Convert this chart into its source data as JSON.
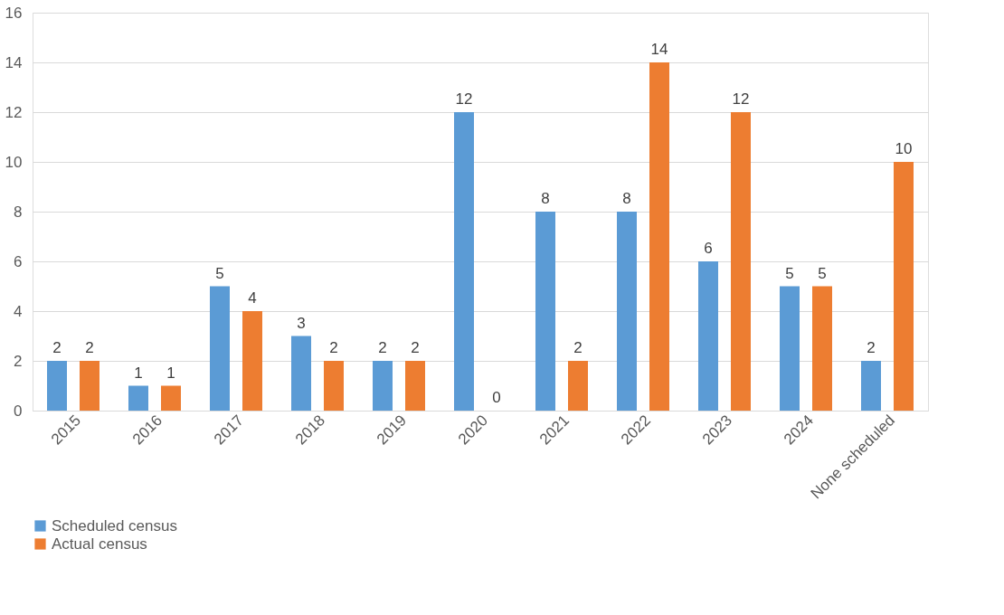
{
  "chart_data": {
    "type": "bar",
    "categories": [
      "2015",
      "2016",
      "2017",
      "2018",
      "2019",
      "2020",
      "2021",
      "2022",
      "2023",
      "2024",
      "None scheduled"
    ],
    "series": [
      {
        "name": "Scheduled census",
        "color": "#5b9bd5",
        "values": [
          2,
          1,
          5,
          3,
          2,
          12,
          8,
          8,
          6,
          5,
          2
        ]
      },
      {
        "name": "Actual census",
        "color": "#ed7d31",
        "values": [
          2,
          1,
          4,
          2,
          2,
          0,
          2,
          14,
          12,
          5,
          10
        ]
      }
    ],
    "ylim": [
      0,
      16
    ],
    "yticks": [
      0,
      2,
      4,
      6,
      8,
      10,
      12,
      14,
      16
    ],
    "grid": "y",
    "legend": "bottom",
    "data_labels": true
  }
}
